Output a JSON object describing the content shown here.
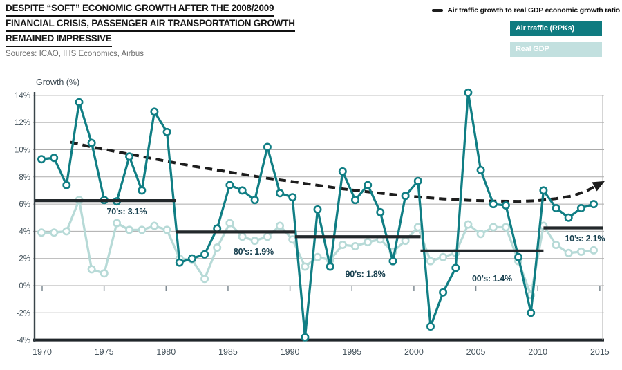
{
  "header": {
    "title_lines": [
      "DESPITE “SOFT” ECONOMIC GROWTH AFTER THE 2008/2009",
      "FINANCIAL CRISIS, PASSENGER AIR TRANSPORTATION GROWTH",
      "REMAINED IMPRESSIVE"
    ],
    "sources": "Sources: ICAO, IHS Economics, Airbus"
  },
  "legend": {
    "ratio_label": "Air traffic growth to real GDP economic growth ratio",
    "air_label": "Air traffic (RPKs)",
    "gdp_label": "Real GDP"
  },
  "colors": {
    "air_line": "#107e84",
    "gdp_line": "#b7dad7",
    "chip_air": "#0f7b80",
    "chip_gdp": "#c2e0df",
    "ratio_line": "#1d1d1d",
    "decade_line": "#23282b",
    "decade_text": "#173f4e",
    "grid": "#ababab",
    "axis": "#39444a",
    "tick_text": "#45535c"
  },
  "chart_data": {
    "type": "line",
    "ylabel": "Growth (%)",
    "xlabel": "",
    "ylim": [
      -4,
      14
    ],
    "xlim": [
      1970,
      2015
    ],
    "grid": true,
    "legend_position": "top-right",
    "x": [
      1970,
      1971,
      1972,
      1973,
      1974,
      1975,
      1976,
      1977,
      1978,
      1979,
      1980,
      1981,
      1982,
      1983,
      1984,
      1985,
      1986,
      1987,
      1988,
      1989,
      1990,
      1991,
      1992,
      1993,
      1994,
      1995,
      1996,
      1997,
      1998,
      1999,
      2000,
      2001,
      2002,
      2003,
      2004,
      2005,
      2006,
      2007,
      2008,
      2009,
      2010,
      2011,
      2012,
      2013,
      2014
    ],
    "series": [
      {
        "name": "Air traffic (RPKs)",
        "values": [
          9.3,
          9.4,
          7.4,
          13.5,
          10.5,
          6.3,
          6.2,
          9.5,
          7.0,
          12.8,
          11.3,
          1.7,
          2.0,
          2.3,
          4.2,
          7.4,
          7.0,
          6.3,
          10.2,
          6.8,
          6.5,
          -3.8,
          5.6,
          1.4,
          8.4,
          6.3,
          7.4,
          5.4,
          1.8,
          6.6,
          7.7,
          -3.0,
          -0.5,
          1.3,
          14.2,
          8.5,
          6.0,
          5.9,
          2.1,
          -2.0,
          7.0,
          5.7,
          5.0,
          5.7,
          6.0
        ]
      },
      {
        "name": "Real GDP",
        "values": [
          3.9,
          3.9,
          4.0,
          6.3,
          1.2,
          0.9,
          4.6,
          4.1,
          4.1,
          4.4,
          4.1,
          2.0,
          1.9,
          0.5,
          2.8,
          4.6,
          3.6,
          3.3,
          3.6,
          4.4,
          3.4,
          1.4,
          2.1,
          1.9,
          3.0,
          2.9,
          3.2,
          3.4,
          2.5,
          3.3,
          4.3,
          1.8,
          2.1,
          2.4,
          4.5,
          3.8,
          4.3,
          4.3,
          1.8,
          -0.7,
          4.4,
          3.0,
          2.4,
          2.5,
          2.6
        ]
      }
    ],
    "ratio_trend": {
      "name": "Air traffic growth to real GDP economic growth ratio",
      "style": "dashed-black-arrow",
      "points": [
        [
          1972.3,
          10.55
        ],
        [
          1974,
          10.2
        ],
        [
          1976,
          9.85
        ],
        [
          1978,
          9.5
        ],
        [
          1980,
          9.15
        ],
        [
          1982,
          8.8
        ],
        [
          1984,
          8.5
        ],
        [
          1986,
          8.2
        ],
        [
          1988,
          7.9
        ],
        [
          1990,
          7.65
        ],
        [
          1992,
          7.38
        ],
        [
          1994,
          7.12
        ],
        [
          1996,
          6.9
        ],
        [
          1998,
          6.7
        ],
        [
          2000,
          6.52
        ],
        [
          2002,
          6.38
        ],
        [
          2004,
          6.28
        ],
        [
          2006,
          6.22
        ],
        [
          2008,
          6.2
        ],
        [
          2009.5,
          6.25
        ],
        [
          2011,
          6.4
        ],
        [
          2012.3,
          6.6
        ],
        [
          2013.4,
          6.95
        ],
        [
          2014.2,
          7.35
        ]
      ]
    },
    "decade_averages": [
      {
        "label": "70’s: 3.1%",
        "ratio_value": 3.1,
        "line_level": 6.25,
        "from": 1969.45,
        "to": 1980.7,
        "label_x": 1976.8,
        "label_y": 5.45
      },
      {
        "label": "80’s: 1.9%",
        "ratio_value": 1.9,
        "line_level": 3.95,
        "from": 1980.7,
        "to": 1990.2,
        "label_x": 1986.9,
        "label_y": 2.5
      },
      {
        "label": "90’s: 1.8%",
        "ratio_value": 1.8,
        "line_level": 3.6,
        "from": 1990.2,
        "to": 2000.2,
        "label_x": 1995.8,
        "label_y": 0.85
      },
      {
        "label": "00’s: 1.4%",
        "ratio_value": 1.4,
        "line_level": 2.55,
        "from": 2000.2,
        "to": 2010.0,
        "label_x": 2005.9,
        "label_y": 0.5
      },
      {
        "label": "10’s: 2.1%",
        "ratio_value": 2.1,
        "line_level": 4.25,
        "from": 2010.0,
        "to": 2014.72,
        "label_x": 2013.3,
        "label_y": 3.45
      }
    ],
    "x_ticks": [
      1970,
      1975,
      1980,
      1985,
      1990,
      1995,
      2000,
      2005,
      2010,
      2015
    ],
    "y_ticks": [
      {
        "value": 14,
        "label": "14%"
      },
      {
        "value": 12,
        "label": "12%"
      },
      {
        "value": 10,
        "label": "10%"
      },
      {
        "value": 8,
        "label": "8%"
      },
      {
        "value": 6,
        "label": "6%"
      },
      {
        "value": 4,
        "label": "4%"
      },
      {
        "value": 2,
        "label": "2%"
      },
      {
        "value": 0,
        "label": "0%"
      },
      {
        "value": -2,
        "label": "-2%"
      },
      {
        "value": -4,
        "label": "-4%"
      }
    ]
  }
}
